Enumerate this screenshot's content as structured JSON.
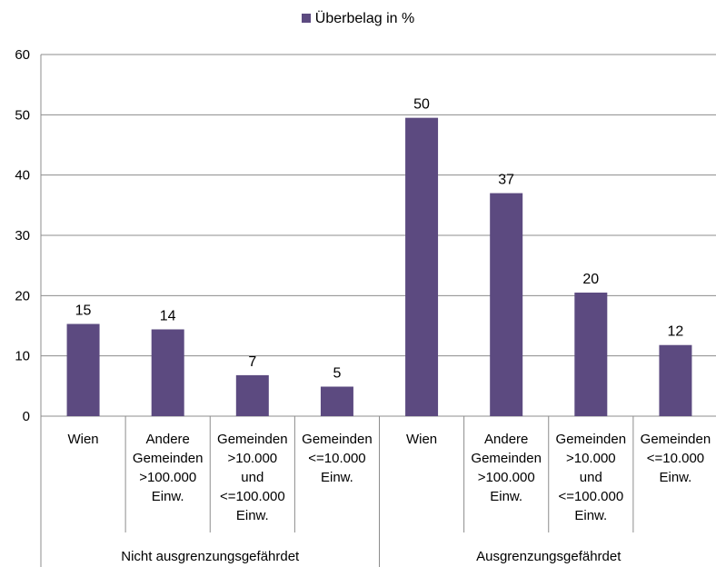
{
  "chart_data": {
    "type": "bar",
    "legend": {
      "label": "Überbelag in %",
      "position": "top-center"
    },
    "series": [
      {
        "name": "Überbelag in %",
        "color": "#5c4a80",
        "values": [
          15.3,
          14.4,
          6.8,
          4.9,
          49.5,
          37.0,
          20.5,
          11.8
        ],
        "data_labels": [
          "15",
          "14",
          "7",
          "5",
          "50",
          "37",
          "20",
          "12"
        ]
      }
    ],
    "categories": [
      {
        "group": "Nicht ausgrenzungsgefährdet",
        "label": [
          "Wien"
        ]
      },
      {
        "group": "Nicht ausgrenzungsgefährdet",
        "label": [
          "Andere",
          "Gemeinden",
          ">100.000",
          "Einw."
        ]
      },
      {
        "group": "Nicht ausgrenzungsgefährdet",
        "label": [
          "Gemeinden",
          ">10.000",
          "und",
          "<=100.000",
          "Einw."
        ]
      },
      {
        "group": "Nicht ausgrenzungsgefährdet",
        "label": [
          "Gemeinden",
          "<=10.000",
          "Einw."
        ]
      },
      {
        "group": "Ausgrenzungsgefährdet",
        "label": [
          "Wien"
        ]
      },
      {
        "group": "Ausgrenzungsgefährdet",
        "label": [
          "Andere",
          "Gemeinden",
          ">100.000",
          "Einw."
        ]
      },
      {
        "group": "Ausgrenzungsgefährdet",
        "label": [
          "Gemeinden",
          ">10.000",
          "und",
          "<=100.000",
          "Einw."
        ]
      },
      {
        "group": "Ausgrenzungsgefährdet",
        "label": [
          "Gemeinden",
          "<=10.000",
          "Einw."
        ]
      }
    ],
    "groups": [
      "Nicht ausgrenzungsgefährdet",
      "Ausgrenzungsgefährdet"
    ],
    "yticks": [
      "0",
      "10",
      "20",
      "30",
      "40",
      "50",
      "60"
    ],
    "ylim": [
      0,
      60
    ],
    "grid": true,
    "colors": {
      "gridline": "#8c8c8c",
      "axis": "#8c8c8c"
    }
  }
}
